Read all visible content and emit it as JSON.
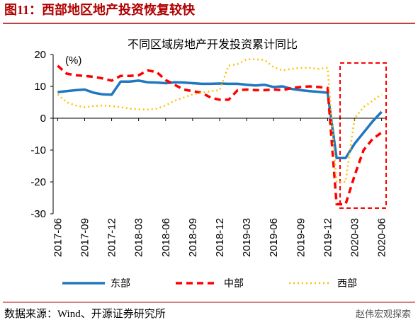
{
  "chart_data": {
    "type": "line",
    "caption": "图11：西部地区地产投资恢复较快",
    "title": "不同区域房地产开发投资累计同比",
    "ylabel": "(%)",
    "source": "数据来源：Wind、开源证券研究所",
    "watermark": "赵伟宏观探索",
    "categories": [
      "2017-06",
      null,
      null,
      "2017-09",
      null,
      null,
      "2017-12",
      null,
      null,
      "2018-03",
      null,
      null,
      "2018-06",
      null,
      null,
      "2018-09",
      null,
      null,
      "2018-12",
      null,
      null,
      "2019-03",
      null,
      null,
      "2019-06",
      null,
      null,
      "2019-09",
      null,
      null,
      "2019-12",
      null,
      null,
      "2020-03",
      null,
      null,
      "2020-06"
    ],
    "series": [
      {
        "name": "东部",
        "color": "#2077c0",
        "values": [
          8.2,
          8.5,
          8.8,
          9.0,
          8.0,
          7.5,
          7.4,
          11.5,
          11.5,
          11.8,
          11.3,
          11.2,
          11.0,
          11.3,
          11.2,
          11.0,
          10.8,
          10.8,
          10.9,
          10.8,
          10.8,
          10.5,
          10.3,
          10.5,
          9.8,
          10.0,
          9.2,
          8.8,
          8.5,
          8.3,
          8.0,
          -12.5,
          -12.5,
          -8.0,
          -4.5,
          -1.0,
          2.0
        ]
      },
      {
        "name": "中部",
        "color": "#ff0000",
        "values": [
          16.5,
          14.0,
          13.5,
          13.3,
          13.0,
          12.5,
          11.8,
          13.3,
          13.3,
          13.5,
          15.0,
          14.5,
          12.0,
          10.5,
          9.0,
          8.5,
          8.0,
          6.5,
          5.8,
          5.8,
          8.8,
          9.0,
          8.8,
          8.8,
          9.0,
          8.8,
          9.5,
          9.8,
          10.0,
          9.8,
          9.5,
          -27.0,
          -27.0,
          -18.0,
          -10.0,
          -6.5,
          -4.5
        ]
      },
      {
        "name": "西部",
        "color": "#ffc000",
        "values": [
          7.5,
          5.0,
          4.0,
          3.5,
          3.8,
          4.0,
          3.8,
          3.5,
          3.0,
          2.8,
          2.7,
          3.0,
          4.0,
          5.5,
          6.5,
          7.5,
          8.0,
          8.5,
          8.8,
          16.5,
          17.0,
          18.5,
          18.5,
          18.3,
          16.0,
          15.0,
          15.5,
          15.8,
          15.8,
          15.5,
          15.8,
          -20.0,
          -20.0,
          0.0,
          3.5,
          5.5,
          7.5
        ]
      }
    ],
    "ylim": [
      -30,
      20
    ],
    "yticks": [
      -30,
      -20,
      -10,
      0,
      10,
      20
    ],
    "grid": false
  }
}
